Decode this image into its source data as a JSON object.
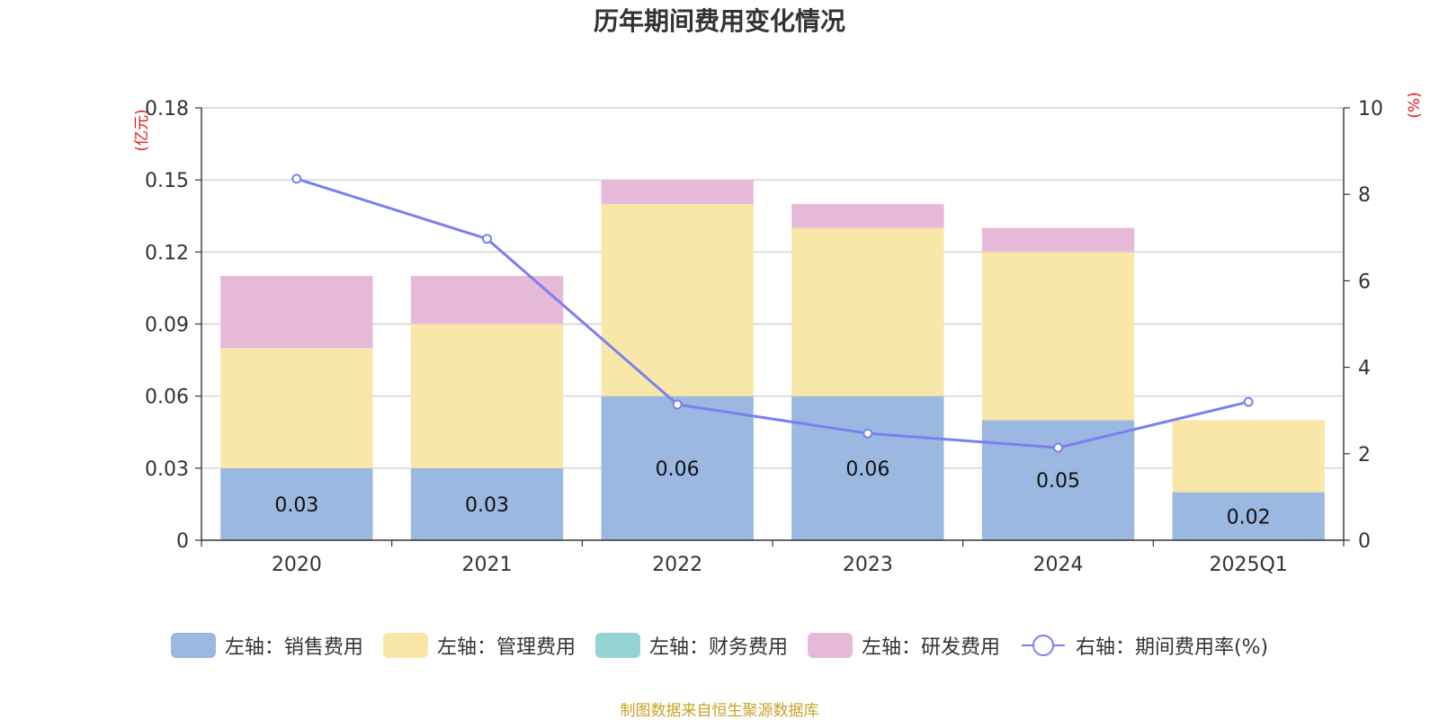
{
  "chart_data": {
    "type": "bar",
    "title": "历年期间费用变化情况",
    "categories": [
      "2020",
      "2021",
      "2022",
      "2023",
      "2024",
      "2025Q1"
    ],
    "left_axis": {
      "unit_label": "(亿元)",
      "ylim": [
        0,
        0.18
      ],
      "ticks": [
        "0",
        "0.03",
        "0.06",
        "0.09",
        "0.12",
        "0.15",
        "0.18"
      ]
    },
    "right_axis": {
      "unit_label": "(%)",
      "ylim": [
        0,
        10
      ],
      "ticks": [
        "0",
        "2",
        "4",
        "6",
        "8",
        "10"
      ]
    },
    "series": [
      {
        "name": "左轴：销售费用",
        "type": "bar",
        "axis": "left",
        "color": "#9bb8e1",
        "values": [
          0.03,
          0.03,
          0.06,
          0.06,
          0.05,
          0.02
        ],
        "labels": [
          "0.03",
          "0.03",
          "0.06",
          "0.06",
          "0.05",
          "0.02"
        ]
      },
      {
        "name": "左轴：管理费用",
        "type": "bar",
        "axis": "left",
        "color": "#f8e7a8",
        "values": [
          0.05,
          0.06,
          0.08,
          0.07,
          0.07,
          0.03
        ]
      },
      {
        "name": "左轴：财务费用",
        "type": "bar",
        "axis": "left",
        "color": "#96d3d4",
        "values": [
          0,
          0,
          0,
          0,
          0,
          0
        ]
      },
      {
        "name": "左轴：研发费用",
        "type": "bar",
        "axis": "left",
        "color": "#e6b9d9",
        "values": [
          0.03,
          0.02,
          0.01,
          0.01,
          0.01,
          0
        ]
      },
      {
        "name": "右轴：期间费用率(%)",
        "type": "line",
        "axis": "right",
        "color": "#7b7fef",
        "values": [
          8.36,
          6.97,
          3.14,
          2.47,
          2.14,
          3.2
        ]
      }
    ],
    "grid": true,
    "legend_position": "bottom"
  },
  "footer": {
    "source": "制图数据来自恒生聚源数据库"
  }
}
